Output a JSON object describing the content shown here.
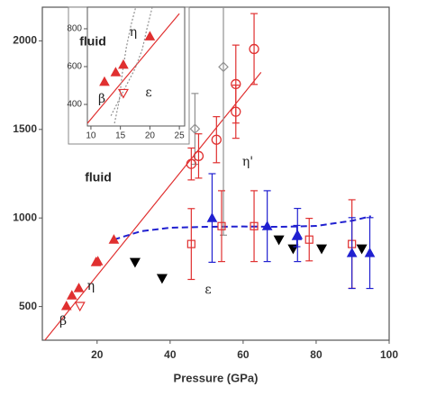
{
  "chart_data": [
    {
      "type": "scatter",
      "xlabel": "Pressure (GPa)",
      "xlim": [
        5,
        100
      ],
      "ylim": [
        310,
        2190
      ],
      "xticks": [
        20,
        40,
        60,
        80,
        100
      ],
      "yticks": [
        500,
        1000,
        1500,
        2000
      ],
      "annotations": [
        "fluid",
        "η'",
        "η",
        "ε",
        "β"
      ],
      "series": [
        {
          "type": "line",
          "color": "#e03030",
          "x": [
            5.7,
            64.9
          ],
          "values": [
            310,
            1822
          ]
        },
        {
          "type": "line",
          "color": "#2020d0",
          "dash": true,
          "x": [
            24.6,
            32,
            40,
            50,
            60,
            70,
            80,
            90,
            95
          ],
          "values": [
            878,
            925,
            945,
            950,
            952,
            950,
            955,
            985,
            1010
          ]
        },
        {
          "marker": "triangle-up",
          "color": "#e03030",
          "x": [
            11.6,
            13.1,
            15,
            19.7,
            20.2,
            24.6
          ],
          "values": [
            503,
            563,
            604,
            751,
            756,
            878
          ]
        },
        {
          "marker": "triangle-down-open",
          "color": "#e03030",
          "x": [
            15.3
          ],
          "values": [
            503
          ]
        },
        {
          "marker": "triangle-down",
          "color": "#000000",
          "x": [
            30.4,
            37.8,
            69.8,
            73.7,
            81.5,
            92.5
          ],
          "values": [
            751,
            660,
            878,
            827,
            827,
            827
          ]
        },
        {
          "marker": "diamond",
          "color": "#909090",
          "x": [
            46.8,
            54.6
          ],
          "values": [
            1503,
            1853
          ],
          "errors": [
            200,
            950
          ]
        },
        {
          "marker": "circle",
          "color": "#e03030",
          "x": [
            45.8,
            47.8,
            52.7,
            58,
            58,
            63
          ],
          "values": [
            1305,
            1350,
            1442,
            1756,
            1600,
            1954
          ],
          "errors": [
            90,
            125,
            130,
            220,
            150,
            200
          ]
        },
        {
          "marker": "square",
          "color": "#e03030",
          "x": [
            45.8,
            54.1,
            63,
            78.1,
            89.8
          ],
          "values": [
            853,
            954,
            954,
            878,
            853
          ],
          "errors": [
            200,
            200,
            200,
            120,
            250
          ]
        },
        {
          "marker": "triangle-up",
          "color": "#2020d0",
          "x": [
            51.5,
            66.6,
            74.9,
            74.7,
            89.8,
            94.7
          ],
          "values": [
            1000,
            954,
            904,
            898,
            802,
            802
          ],
          "errors": [
            250,
            200,
            150,
            60,
            200,
            200
          ]
        }
      ]
    },
    {
      "type": "scatter",
      "xlim": [
        9.4,
        25.9
      ],
      "ylim": [
        286,
        914
      ],
      "xticks": [
        10,
        15,
        20,
        25
      ],
      "yticks": [
        400,
        600,
        800
      ],
      "annotations": [
        "fluid",
        "η",
        "β",
        "ε"
      ],
      "series": [
        {
          "type": "line",
          "color": "#e03030",
          "x": [
            9.4,
            25
          ],
          "values": [
            300,
            880
          ]
        },
        {
          "type": "line",
          "color": "#909090",
          "dotted": true,
          "x": [
            14,
            14.8,
            15.3,
            16,
            16.8,
            17.6
          ],
          "values": [
            300,
            420,
            560,
            700,
            820,
            914
          ]
        },
        {
          "type": "line",
          "color": "#909090",
          "dotted": true,
          "x": [
            13.4,
            15.5,
            17.5,
            18.7,
            19.5,
            20.4
          ],
          "values": [
            340,
            470,
            590,
            690,
            800,
            914
          ]
        },
        {
          "marker": "triangle-up",
          "color": "#e03030",
          "x": [
            12.3,
            14.2,
            15.5,
            20
          ],
          "values": [
            520,
            570,
            610,
            760
          ]
        },
        {
          "marker": "triangle-down-open",
          "color": "#e03030",
          "x": [
            15.5
          ],
          "values": [
            460
          ]
        }
      ]
    }
  ]
}
